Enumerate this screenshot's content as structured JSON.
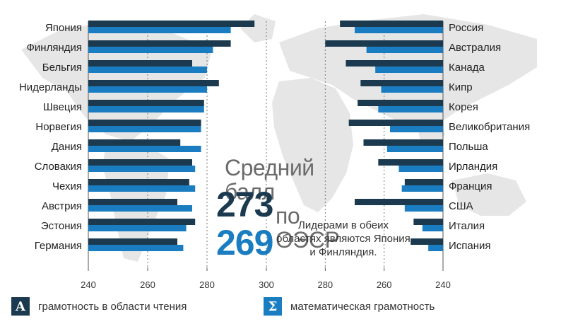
{
  "chart_data": {
    "type": "bar",
    "center_title_line1": "Средний балл",
    "center_title_line2": "по ОЭСР",
    "oecd_average_reading": "273",
    "oecd_average_math": "269",
    "note": "Лидерами в обеих областях являются Япония и Финляндия.",
    "legend": [
      {
        "symbol": "A",
        "label": "грамотность в области чтения",
        "color": "#1b3a4f"
      },
      {
        "symbol": "Σ",
        "label": "математическая грамотность",
        "color": "#1a7dc1"
      }
    ],
    "colors": {
      "reading": "#1b3a4f",
      "math": "#1a7dc1",
      "map": "#e6e6e6"
    },
    "left_panel": {
      "xlim": [
        240,
        300
      ],
      "ticks": [
        "240",
        "260",
        "280",
        "300"
      ],
      "categories": [
        "Япония",
        "Финляндия",
        "Бельгия",
        "Нидерланды",
        "Швеция",
        "Норвегия",
        "Дания",
        "Словакия",
        "Чехия",
        "Австрия",
        "Эстония",
        "Германия"
      ],
      "series": [
        {
          "name": "грамотность в области чтения",
          "values": [
            296,
            288,
            275,
            284,
            279,
            278,
            271,
            275,
            274,
            270,
            276,
            270
          ]
        },
        {
          "name": "математическая грамотность",
          "values": [
            288,
            282,
            280,
            280,
            279,
            278,
            278,
            276,
            276,
            275,
            273,
            272
          ]
        }
      ]
    },
    "right_panel": {
      "xlim": [
        300,
        240
      ],
      "ticks": [
        "280",
        "260",
        "240"
      ],
      "categories": [
        "Россия",
        "Австралия",
        "Канада",
        "Кипр",
        "Корея",
        "Великобритания",
        "Польша",
        "Ирландия",
        "Франция",
        "США",
        "Италия",
        "Испания"
      ],
      "series": [
        {
          "name": "грамотность в области чтения",
          "values": [
            275,
            280,
            273,
            268,
            269,
            272,
            267,
            262,
            253,
            270,
            250,
            251
          ]
        },
        {
          "name": "математическая грамотность",
          "values": [
            270,
            266,
            263,
            261,
            262,
            258,
            259,
            255,
            254,
            253,
            247,
            245
          ]
        }
      ]
    }
  }
}
